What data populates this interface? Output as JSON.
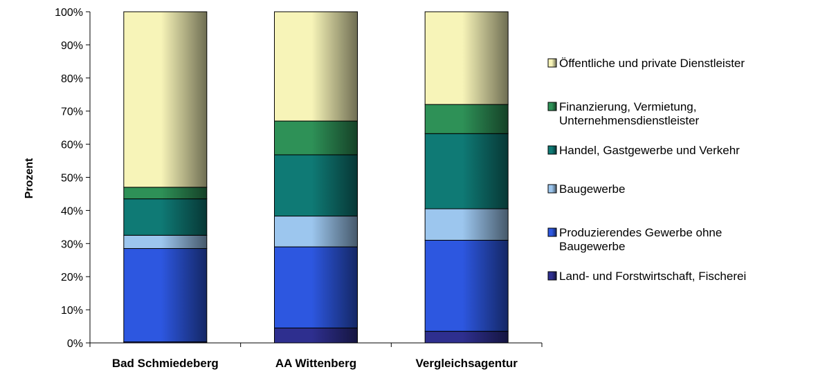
{
  "chart_data": {
    "type": "bar",
    "stacked": true,
    "percent_stacked": true,
    "categories": [
      "Bad Schmiedeberg",
      "AA Wittenberg",
      "Vergleichsagentur"
    ],
    "ylabel": "Prozent",
    "xlabel": "",
    "ylim": [
      0,
      100
    ],
    "yticks": [
      "0%",
      "10%",
      "20%",
      "30%",
      "40%",
      "50%",
      "60%",
      "70%",
      "80%",
      "90%",
      "100%"
    ],
    "grid": false,
    "legend_position": "right",
    "series": [
      {
        "name": "Land- und Forstwirtschaft, Fischerei",
        "values": [
          0.3,
          4.5,
          3.5
        ],
        "color": "#2e2f8f"
      },
      {
        "name": "Produzierendes Gewerbe ohne Baugewerbe",
        "values": [
          28.2,
          24.5,
          27.5
        ],
        "color": "#2d57e0"
      },
      {
        "name": "Baugewerbe",
        "values": [
          4.0,
          9.3,
          9.5
        ],
        "color": "#9cc6ee"
      },
      {
        "name": "Handel, Gastgewerbe und Verkehr",
        "values": [
          11.0,
          18.5,
          22.7
        ],
        "color": "#0f7a75"
      },
      {
        "name": "Finanzierung, Vermietung, Unternehmensdienstleister",
        "values": [
          3.5,
          10.2,
          8.8
        ],
        "color": "#2e9157"
      },
      {
        "name": "Öffentliche und private Dienstleister",
        "values": [
          53.0,
          33.0,
          28.0
        ],
        "color": "#f7f4b8"
      }
    ],
    "legend_lines": [
      [
        "Öffentliche und private Dienstleister"
      ],
      [
        "Finanzierung, Vermietung,",
        "Unternehmensdienstleister"
      ],
      [
        "Handel, Gastgewerbe und Verkehr"
      ],
      [
        "Baugewerbe"
      ],
      [
        "Produzierendes Gewerbe ohne",
        "Baugewerbe"
      ],
      [
        "Land- und Forstwirtschaft, Fischerei"
      ]
    ]
  }
}
